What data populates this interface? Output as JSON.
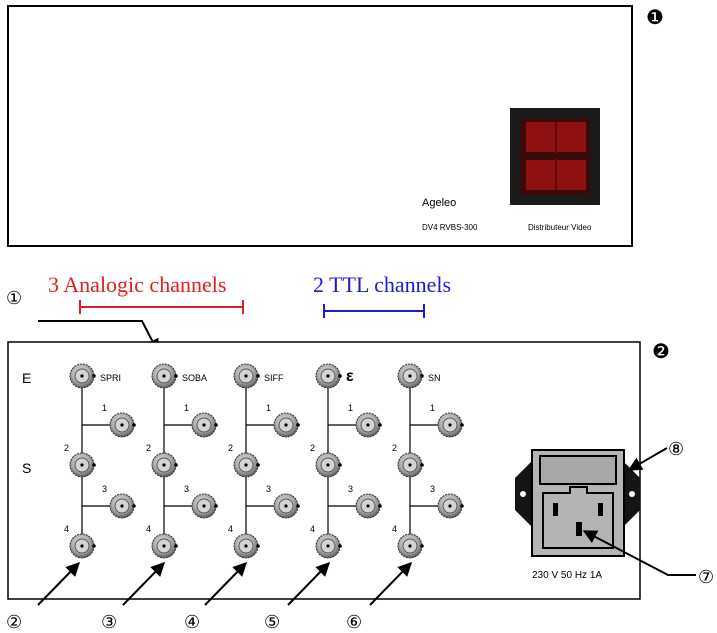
{
  "front_panel": {
    "marker": "❶",
    "brand": "Ageleo",
    "model": "DV4 RVBS-300",
    "product": "Distributeur Video"
  },
  "legend": {
    "analog_label": "3 Analogic channels",
    "analog_color": "#e0201e",
    "ttl_label": "2 TTL channels",
    "ttl_color": "#1c1ccc",
    "callout_1": "①"
  },
  "rear_panel": {
    "marker": "❷",
    "row_input": "E",
    "row_output": "S",
    "channels": [
      {
        "name": "SPRI",
        "outputs": [
          "1",
          "2",
          "3",
          "4"
        ]
      },
      {
        "name": "SOBA",
        "outputs": [
          "1",
          "2",
          "3",
          "4"
        ]
      },
      {
        "name": "SIFF",
        "outputs": [
          "1",
          "2",
          "3",
          "4"
        ]
      },
      {
        "name": "ε",
        "outputs": [
          "1",
          "2",
          "3",
          "4"
        ]
      },
      {
        "name": "SN",
        "outputs": [
          "1",
          "2",
          "3",
          "4"
        ]
      }
    ],
    "power_rating": "230 V 50 Hz 1A",
    "callouts": [
      "②",
      "③",
      "④",
      "⑤",
      "⑥",
      "⑦",
      "⑧"
    ]
  },
  "colors": {
    "display_red": "#a31111",
    "display_frame": "#1a1a1a",
    "connector_grey": "#9a9a9a"
  }
}
